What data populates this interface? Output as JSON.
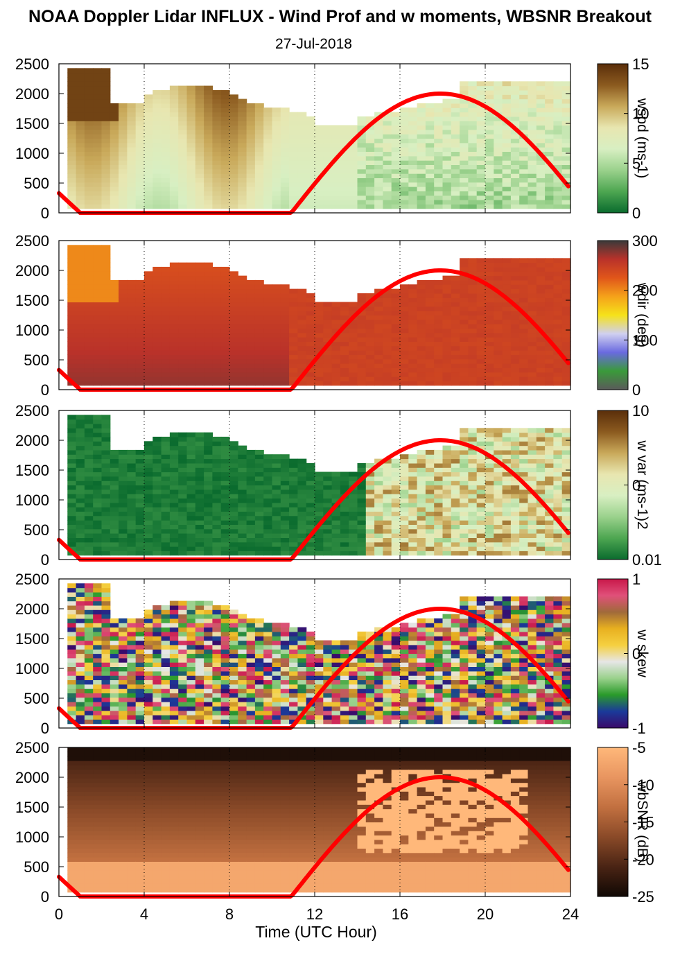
{
  "title": "NOAA Doppler Lidar INFLUX - Wind Prof and w moments, WBSNR Breakout",
  "subtitle": "27-Jul-2018",
  "xlabel": "Time (UTC Hour)",
  "chart_data": [
    {
      "type": "heatmap",
      "name": "wspd",
      "colorbar_label": "wspd (ms-1)",
      "colorbar_ticks": [
        "15",
        "10",
        "5",
        "0"
      ],
      "colorbar_colors": [
        "#5a2e0a",
        "#8b5a1f",
        "#c9a95a",
        "#e8e6b0",
        "#d8efc2",
        "#9ad18c",
        "#4da651",
        "#0a6b2e"
      ],
      "x": [
        0,
        4,
        8,
        12,
        16,
        20,
        24
      ],
      "xlim": [
        0,
        24
      ],
      "ylim": [
        0,
        2500
      ],
      "yticks": [
        "2500",
        "2000",
        "1500",
        "1000",
        "500",
        "0"
      ],
      "overlay_color": "#ff0000"
    },
    {
      "type": "heatmap",
      "name": "wdir",
      "colorbar_label": "wdir (deg)",
      "colorbar_ticks": [
        "300",
        "200",
        "100",
        "0"
      ],
      "colorbar_colors": [
        "#3a3a3a",
        "#b9322a",
        "#e0561a",
        "#f5a21a",
        "#f5e21a",
        "#d0d0f0",
        "#6a6ae0",
        "#3a9a3a",
        "#5a5a5a"
      ],
      "x": [
        0,
        4,
        8,
        12,
        16,
        20,
        24
      ],
      "xlim": [
        0,
        24
      ],
      "ylim": [
        0,
        2500
      ],
      "yticks": [
        "2500",
        "2000",
        "1500",
        "1000",
        "500",
        "0"
      ],
      "overlay_color": "#ff0000"
    },
    {
      "type": "heatmap",
      "name": "w var",
      "colorbar_label": "w var (ms-1)2",
      "colorbar_ticks": [
        "10",
        "0",
        "0.01"
      ],
      "colorbar_colors": [
        "#5a2e0a",
        "#8b5a1f",
        "#c9a95a",
        "#e8e6b0",
        "#d8efc2",
        "#9ad18c",
        "#4da651",
        "#0a6b2e"
      ],
      "x": [
        0,
        4,
        8,
        12,
        16,
        20,
        24
      ],
      "xlim": [
        0,
        24
      ],
      "ylim": [
        0,
        2500
      ],
      "yticks": [
        "2500",
        "2000",
        "1500",
        "1000",
        "500",
        "0"
      ],
      "overlay_color": "#ff0000"
    },
    {
      "type": "heatmap",
      "name": "w skew",
      "colorbar_label": "w skew",
      "colorbar_ticks": [
        "1",
        "0",
        "-1"
      ],
      "colorbar_colors": [
        "#c8184a",
        "#e0507a",
        "#a06a3a",
        "#e8b020",
        "#f5d040",
        "#e6e6e6",
        "#9ad18c",
        "#2a9a2a",
        "#1a3a9a",
        "#3a0a6a"
      ],
      "x": [
        0,
        4,
        8,
        12,
        16,
        20,
        24
      ],
      "xlim": [
        0,
        24
      ],
      "ylim": [
        0,
        2500
      ],
      "yticks": [
        "2500",
        "2000",
        "1500",
        "1000",
        "500",
        "0"
      ],
      "overlay_color": "#ff0000"
    },
    {
      "type": "heatmap",
      "name": "wbSNR",
      "colorbar_label": "wbSNR (dB)",
      "colorbar_ticks": [
        "-5",
        "-10",
        "-15",
        "-20",
        "-25"
      ],
      "colorbar_colors": [
        "#ffb87a",
        "#e89560",
        "#c27040",
        "#8a4a28",
        "#4a2414",
        "#100804"
      ],
      "x": [
        0,
        4,
        8,
        12,
        16,
        20,
        24
      ],
      "xlim": [
        0,
        24
      ],
      "ylim": [
        0,
        2500
      ],
      "yticks": [
        "2500",
        "2000",
        "1500",
        "1000",
        "500",
        "0"
      ],
      "overlay_color": "#ff0000"
    }
  ]
}
